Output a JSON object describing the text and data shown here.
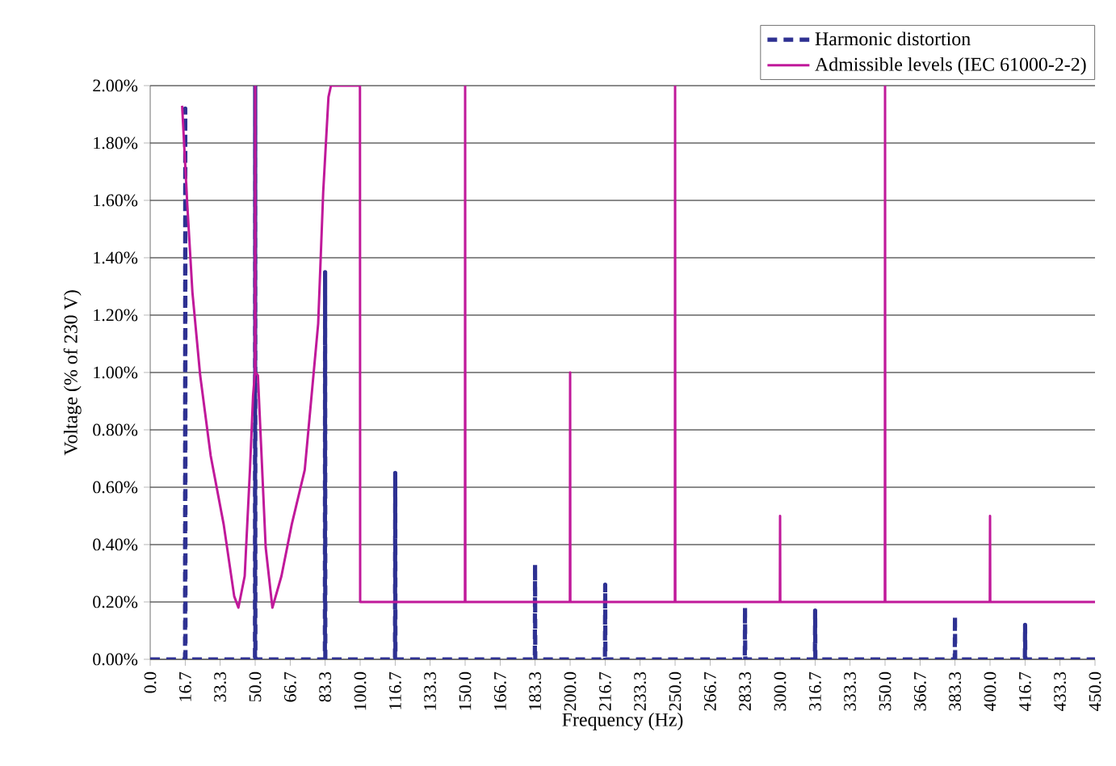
{
  "chart_data": {
    "type": "line",
    "xlabel": "Frequency (Hz)",
    "ylabel": "Voltage (% of 230 V)",
    "xlim": [
      0,
      450
    ],
    "ylim": [
      0,
      2
    ],
    "xticks": [
      {
        "value": 0,
        "label": "0.0"
      },
      {
        "value": 16.7,
        "label": "16.7"
      },
      {
        "value": 33.3,
        "label": "33.3"
      },
      {
        "value": 50,
        "label": "50.0"
      },
      {
        "value": 66.7,
        "label": "66.7"
      },
      {
        "value": 83.3,
        "label": "83.3"
      },
      {
        "value": 100,
        "label": "100.0"
      },
      {
        "value": 116.7,
        "label": "116.7"
      },
      {
        "value": 133.3,
        "label": "133.3"
      },
      {
        "value": 150,
        "label": "150.0"
      },
      {
        "value": 166.7,
        "label": "166.7"
      },
      {
        "value": 183.3,
        "label": "183.3"
      },
      {
        "value": 200,
        "label": "200.0"
      },
      {
        "value": 216.7,
        "label": "216.7"
      },
      {
        "value": 233.3,
        "label": "233.3"
      },
      {
        "value": 250,
        "label": "250.0"
      },
      {
        "value": 266.7,
        "label": "266.7"
      },
      {
        "value": 283.3,
        "label": "283.3"
      },
      {
        "value": 300,
        "label": "300.0"
      },
      {
        "value": 316.7,
        "label": "316.7"
      },
      {
        "value": 333.3,
        "label": "333.3"
      },
      {
        "value": 350,
        "label": "350.0"
      },
      {
        "value": 366.7,
        "label": "366.7"
      },
      {
        "value": 383.3,
        "label": "383.3"
      },
      {
        "value": 400,
        "label": "400.0"
      },
      {
        "value": 416.7,
        "label": "416.7"
      },
      {
        "value": 433.3,
        "label": "433.3"
      },
      {
        "value": 450,
        "label": "450.0"
      }
    ],
    "yticks": [
      {
        "value": 0,
        "label": "0.00%"
      },
      {
        "value": 0.2,
        "label": "0.20%"
      },
      {
        "value": 0.4,
        "label": "0.40%"
      },
      {
        "value": 0.6,
        "label": "0.60%"
      },
      {
        "value": 0.8,
        "label": "0.80%"
      },
      {
        "value": 1.0,
        "label": "1.00%"
      },
      {
        "value": 1.2,
        "label": "1.20%"
      },
      {
        "value": 1.4,
        "label": "1.40%"
      },
      {
        "value": 1.6,
        "label": "1.60%"
      },
      {
        "value": 1.8,
        "label": "1.80%"
      },
      {
        "value": 2.0,
        "label": "2.00%"
      }
    ],
    "grid": "y",
    "legend": "top right",
    "series": [
      {
        "name": "Harmonic distortion",
        "color": "#2e3192",
        "line_style": "dashed",
        "x": [
          0,
          16.6,
          16.7,
          16.8,
          49.9,
          50,
          50.1,
          83.2,
          83.3,
          83.4,
          116.6,
          116.7,
          116.8,
          183.2,
          183.3,
          183.4,
          216.6,
          216.7,
          216.8,
          283.2,
          283.3,
          283.4,
          316.6,
          316.7,
          316.8,
          383.2,
          383.3,
          383.4,
          416.6,
          416.7,
          416.8,
          450
        ],
        "values": [
          0,
          0,
          1.92,
          0,
          0,
          2.0,
          0,
          0,
          1.35,
          0,
          0,
          0.65,
          0,
          0,
          0.33,
          0,
          0,
          0.26,
          0,
          0,
          0.18,
          0,
          0,
          0.17,
          0,
          0,
          0.15,
          0,
          0,
          0.12,
          0,
          0
        ]
      },
      {
        "name": "Admissible levels (IEC 61000-2-2)",
        "color": "#c0199a",
        "line_style": "solid",
        "x": [
          15.2,
          17.7,
          20.1,
          23.8,
          28.8,
          35,
          40,
          42,
          45,
          47.5,
          49,
          49.9,
          50,
          50.1,
          51.3,
          55,
          58.2,
          62.5,
          67.4,
          73.6,
          80,
          82.4,
          84.9,
          86.1,
          99.9,
          100,
          149.9,
          150,
          150.1,
          199.9,
          200,
          200.1,
          249.9,
          250,
          250.1,
          299.9,
          300,
          300.1,
          349.9,
          350,
          350.1,
          399.9,
          400,
          400.1,
          450
        ],
        "values": [
          1.93,
          1.58,
          1.28,
          0.99,
          0.71,
          0.47,
          0.22,
          0.18,
          0.29,
          0.66,
          0.92,
          1.0,
          2.0,
          1.0,
          0.99,
          0.39,
          0.18,
          0.29,
          0.47,
          0.66,
          1.17,
          1.63,
          1.96,
          2.0,
          2.0,
          0.2,
          0.2,
          2.0,
          0.2,
          0.2,
          1.0,
          0.2,
          0.2,
          2.0,
          0.2,
          0.2,
          0.5,
          0.2,
          0.2,
          2.0,
          0.2,
          0.2,
          0.5,
          0.2,
          0.2
        ]
      }
    ]
  }
}
